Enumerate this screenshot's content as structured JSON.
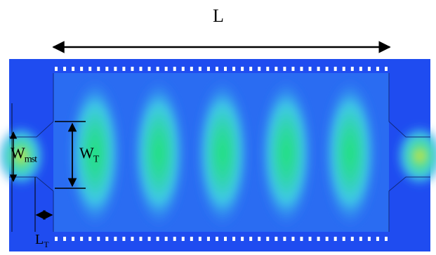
{
  "labels": {
    "length": "L",
    "microstrip_width": "W",
    "microstrip_width_sub": "mst",
    "taper_width": "W",
    "taper_width_sub": "T",
    "taper_length": "L",
    "taper_length_sub": "T"
  },
  "colors": {
    "background": "#ffffff",
    "substrate": "#1f4cf0",
    "field_low": "#2f7cf4",
    "field_mid": "#3fc8e8",
    "field_high": "#22e27a",
    "via": "#ffffff",
    "annotation": "#000000"
  },
  "field_lobes": 5,
  "vias_per_row": 40
}
